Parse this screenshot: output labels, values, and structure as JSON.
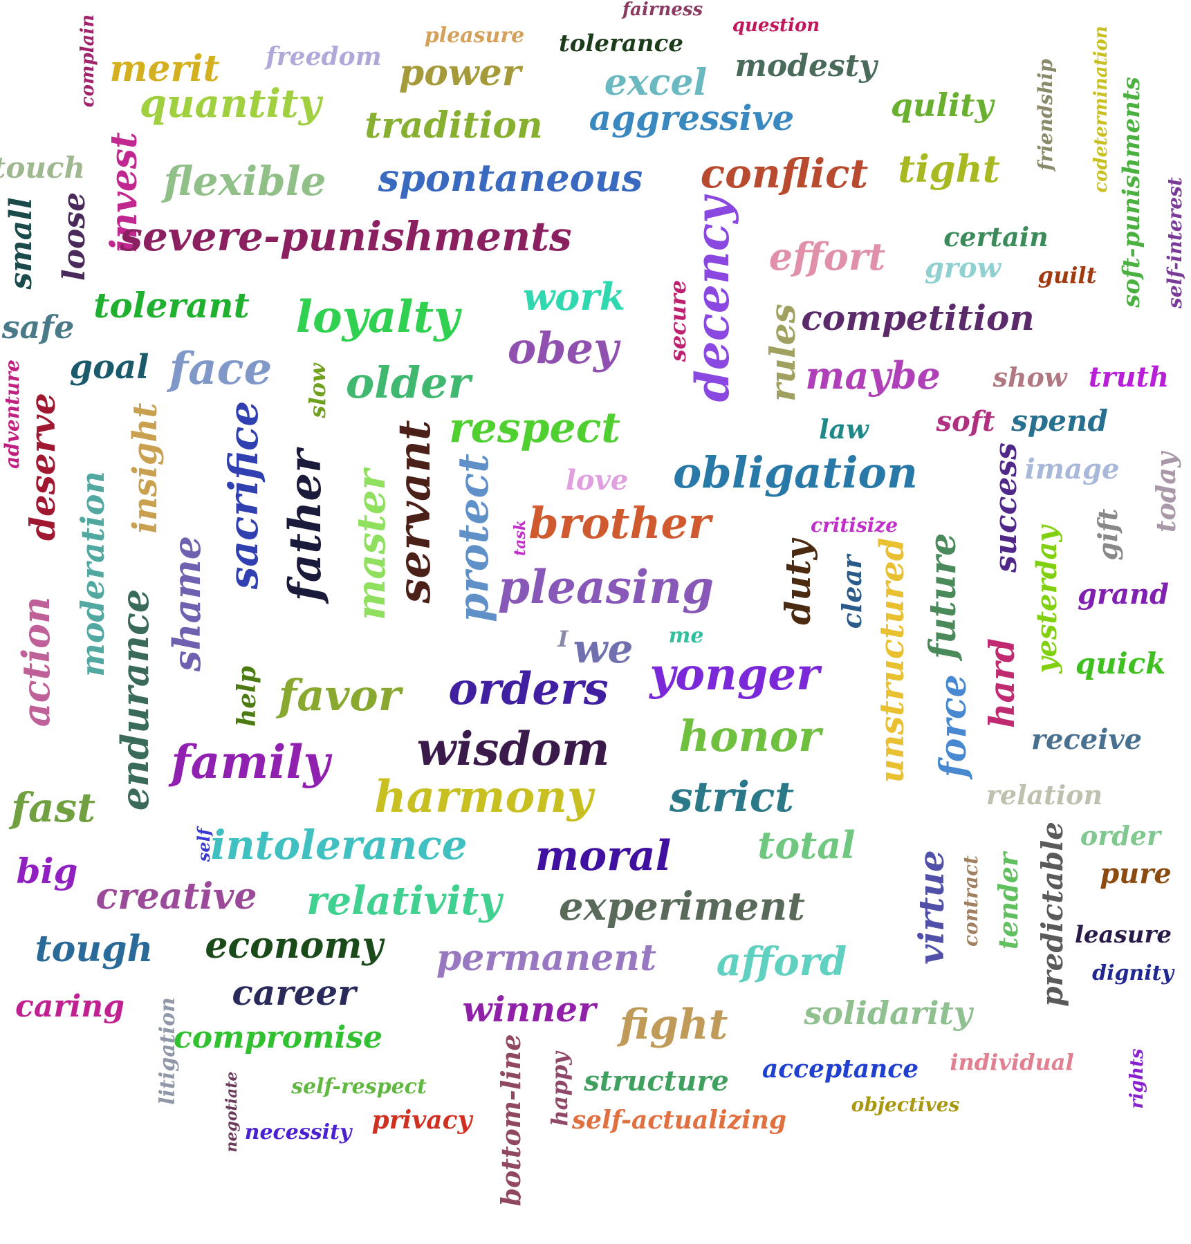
{
  "words": [
    {
      "text": "fairness",
      "color": "#8b3a62"
    },
    {
      "text": "question",
      "color": "#c2185b"
    },
    {
      "text": "complain",
      "color": "#a0226a"
    },
    {
      "text": "pleasure",
      "color": "#d4a05a"
    },
    {
      "text": "tolerance",
      "color": "#1b3b1b"
    },
    {
      "text": "merit",
      "color": "#d4b020"
    },
    {
      "text": "freedom",
      "color": "#b0a8d8"
    },
    {
      "text": "power",
      "color": "#a49a3a"
    },
    {
      "text": "modesty",
      "color": "#4a6a5a"
    },
    {
      "text": "excel",
      "color": "#6ab8c0"
    },
    {
      "text": "codetermination",
      "color": "#c8c020"
    },
    {
      "text": "friendship",
      "color": "#8a8a6a"
    },
    {
      "text": "quantity",
      "color": "#a0d040"
    },
    {
      "text": "tradition",
      "color": "#88b030"
    },
    {
      "text": "aggressive",
      "color": "#3a88c0"
    },
    {
      "text": "qulity",
      "color": "#6ab030"
    },
    {
      "text": "soft-punishments",
      "color": "#4ab040"
    },
    {
      "text": "touch",
      "color": "#a0b890"
    },
    {
      "text": "invest",
      "color": "#c02890"
    },
    {
      "text": "flexible",
      "color": "#90c088"
    },
    {
      "text": "spontaneous",
      "color": "#3a6ac0"
    },
    {
      "text": "conflict",
      "color": "#b84a30"
    },
    {
      "text": "tight",
      "color": "#a8b820"
    },
    {
      "text": "self-interest",
      "color": "#7a3a98"
    },
    {
      "text": "small",
      "color": "#1a4a4a"
    },
    {
      "text": "loose",
      "color": "#4a2a5a"
    },
    {
      "text": "severe-punishments",
      "color": "#8a2060"
    },
    {
      "text": "decency",
      "color": "#8a48e0"
    },
    {
      "text": "effort",
      "color": "#e090a8"
    },
    {
      "text": "certain",
      "color": "#3a8a5a"
    },
    {
      "text": "grow",
      "color": "#90d0d0"
    },
    {
      "text": "guilt",
      "color": "#a03a10"
    },
    {
      "text": "tolerant",
      "color": "#20b030"
    },
    {
      "text": "loyalty",
      "color": "#30d050"
    },
    {
      "text": "work",
      "color": "#30d8b0"
    },
    {
      "text": "secure",
      "color": "#c02070"
    },
    {
      "text": "safe",
      "color": "#4a7a88"
    },
    {
      "text": "rules",
      "color": "#a0a060"
    },
    {
      "text": "competition",
      "color": "#5a2a6a"
    },
    {
      "text": "obey",
      "color": "#9050b0"
    },
    {
      "text": "goal",
      "color": "#1a5a6a"
    },
    {
      "text": "face",
      "color": "#8098c8"
    },
    {
      "text": "slow",
      "color": "#70a020"
    },
    {
      "text": "older",
      "color": "#40b870"
    },
    {
      "text": "maybe",
      "color": "#b040b8"
    },
    {
      "text": "show",
      "color": "#b07880"
    },
    {
      "text": "truth",
      "color": "#b820d8"
    },
    {
      "text": "adventure",
      "color": "#c02080"
    },
    {
      "text": "deserve",
      "color": "#a01830"
    },
    {
      "text": "insight",
      "color": "#c8a050"
    },
    {
      "text": "sacrifice",
      "color": "#3040b0"
    },
    {
      "text": "respect",
      "color": "#50d030"
    },
    {
      "text": "law",
      "color": "#208888"
    },
    {
      "text": "soft",
      "color": "#b03080"
    },
    {
      "text": "spend",
      "color": "#287090"
    },
    {
      "text": "moderation",
      "color": "#50a8a0"
    },
    {
      "text": "father",
      "color": "#1a1a3a"
    },
    {
      "text": "servant",
      "color": "#4a2018"
    },
    {
      "text": "master",
      "color": "#90e060"
    },
    {
      "text": "protect",
      "color": "#6090c8"
    },
    {
      "text": "obligation",
      "color": "#2878a8"
    },
    {
      "text": "image",
      "color": "#a8b8d8"
    },
    {
      "text": "today",
      "color": "#a898a8"
    },
    {
      "text": "success",
      "color": "#502888"
    },
    {
      "text": "love",
      "color": "#e0a0e0"
    },
    {
      "text": "brother",
      "color": "#d05a30"
    },
    {
      "text": "critisize",
      "color": "#c030c8"
    },
    {
      "text": "task",
      "color": "#c030c8"
    },
    {
      "text": "gift",
      "color": "#888888"
    },
    {
      "text": "shame",
      "color": "#7060b0"
    },
    {
      "text": "pleasing",
      "color": "#8858b8"
    },
    {
      "text": "duty",
      "color": "#4a2a10"
    },
    {
      "text": "clear",
      "color": "#2a5a8a"
    },
    {
      "text": "unstructured",
      "color": "#e8c030"
    },
    {
      "text": "future",
      "color": "#4a8a5a"
    },
    {
      "text": "yesterday",
      "color": "#80d010"
    },
    {
      "text": "grand",
      "color": "#8020b0"
    },
    {
      "text": "action",
      "color": "#c06098"
    },
    {
      "text": "endurance",
      "color": "#3a6a5a"
    },
    {
      "text": "I",
      "color": "#8a8aa8"
    },
    {
      "text": "we",
      "color": "#7070b0"
    },
    {
      "text": "me",
      "color": "#30c0a0"
    },
    {
      "text": "help",
      "color": "#4a7a10"
    },
    {
      "text": "favor",
      "color": "#88a830"
    },
    {
      "text": "orders",
      "color": "#4020a0"
    },
    {
      "text": "yonger",
      "color": "#7a28d8"
    },
    {
      "text": "quick",
      "color": "#40c020"
    },
    {
      "text": "hard",
      "color": "#c02a70"
    },
    {
      "text": "force",
      "color": "#4888d0"
    },
    {
      "text": "honor",
      "color": "#70c040"
    },
    {
      "text": "wisdom",
      "color": "#3a1a4a"
    },
    {
      "text": "family",
      "color": "#9020b0"
    },
    {
      "text": "receive",
      "color": "#4a7090"
    },
    {
      "text": "harmony",
      "color": "#c8c020"
    },
    {
      "text": "strict",
      "color": "#2a7888"
    },
    {
      "text": "fast",
      "color": "#70a040"
    },
    {
      "text": "relation",
      "color": "#c0c0b0"
    },
    {
      "text": "self",
      "color": "#3a3ad0"
    },
    {
      "text": "intolerance",
      "color": "#40c0c0"
    },
    {
      "text": "moral",
      "color": "#4010a0"
    },
    {
      "text": "total",
      "color": "#70c880"
    },
    {
      "text": "order",
      "color": "#80c890"
    },
    {
      "text": "big",
      "color": "#9020c0"
    },
    {
      "text": "pure",
      "color": "#8a4a10"
    },
    {
      "text": "virtue",
      "color": "#5050a8"
    },
    {
      "text": "contract",
      "color": "#a08060"
    },
    {
      "text": "tender",
      "color": "#60c060"
    },
    {
      "text": "predictable",
      "color": "#5a5a5a"
    },
    {
      "text": "creative",
      "color": "#9a4a98"
    },
    {
      "text": "relativity",
      "color": "#40d090"
    },
    {
      "text": "experiment",
      "color": "#5a6a5a"
    },
    {
      "text": "leasure",
      "color": "#2a1a4a"
    },
    {
      "text": "tough",
      "color": "#2a6a98"
    },
    {
      "text": "economy",
      "color": "#1a4a1a"
    },
    {
      "text": "permanent",
      "color": "#9878c0"
    },
    {
      "text": "afford",
      "color": "#60d0c0"
    },
    {
      "text": "dignity",
      "color": "#202890"
    },
    {
      "text": "career",
      "color": "#2a2a5a"
    },
    {
      "text": "caring",
      "color": "#c02090"
    },
    {
      "text": "winner",
      "color": "#9020a8"
    },
    {
      "text": "litigation",
      "color": "#9098a8"
    },
    {
      "text": "fight",
      "color": "#c09a58"
    },
    {
      "text": "solidarity",
      "color": "#90c090"
    },
    {
      "text": "compromise",
      "color": "#30c030"
    },
    {
      "text": "bottom-line",
      "color": "#904860"
    },
    {
      "text": "rights",
      "color": "#8820d0"
    },
    {
      "text": "individual",
      "color": "#e08090"
    },
    {
      "text": "acceptance",
      "color": "#2040d0"
    },
    {
      "text": "structure",
      "color": "#40a060"
    },
    {
      "text": "happy",
      "color": "#904868"
    },
    {
      "text": "negotiate",
      "color": "#6a3a5a"
    },
    {
      "text": "self-respect",
      "color": "#60b840"
    },
    {
      "text": "objectives",
      "color": "#a89810"
    },
    {
      "text": "privacy",
      "color": "#d03020"
    },
    {
      "text": "self-actualizing",
      "color": "#e07040"
    },
    {
      "text": "necessity",
      "color": "#4a20d0"
    }
  ]
}
